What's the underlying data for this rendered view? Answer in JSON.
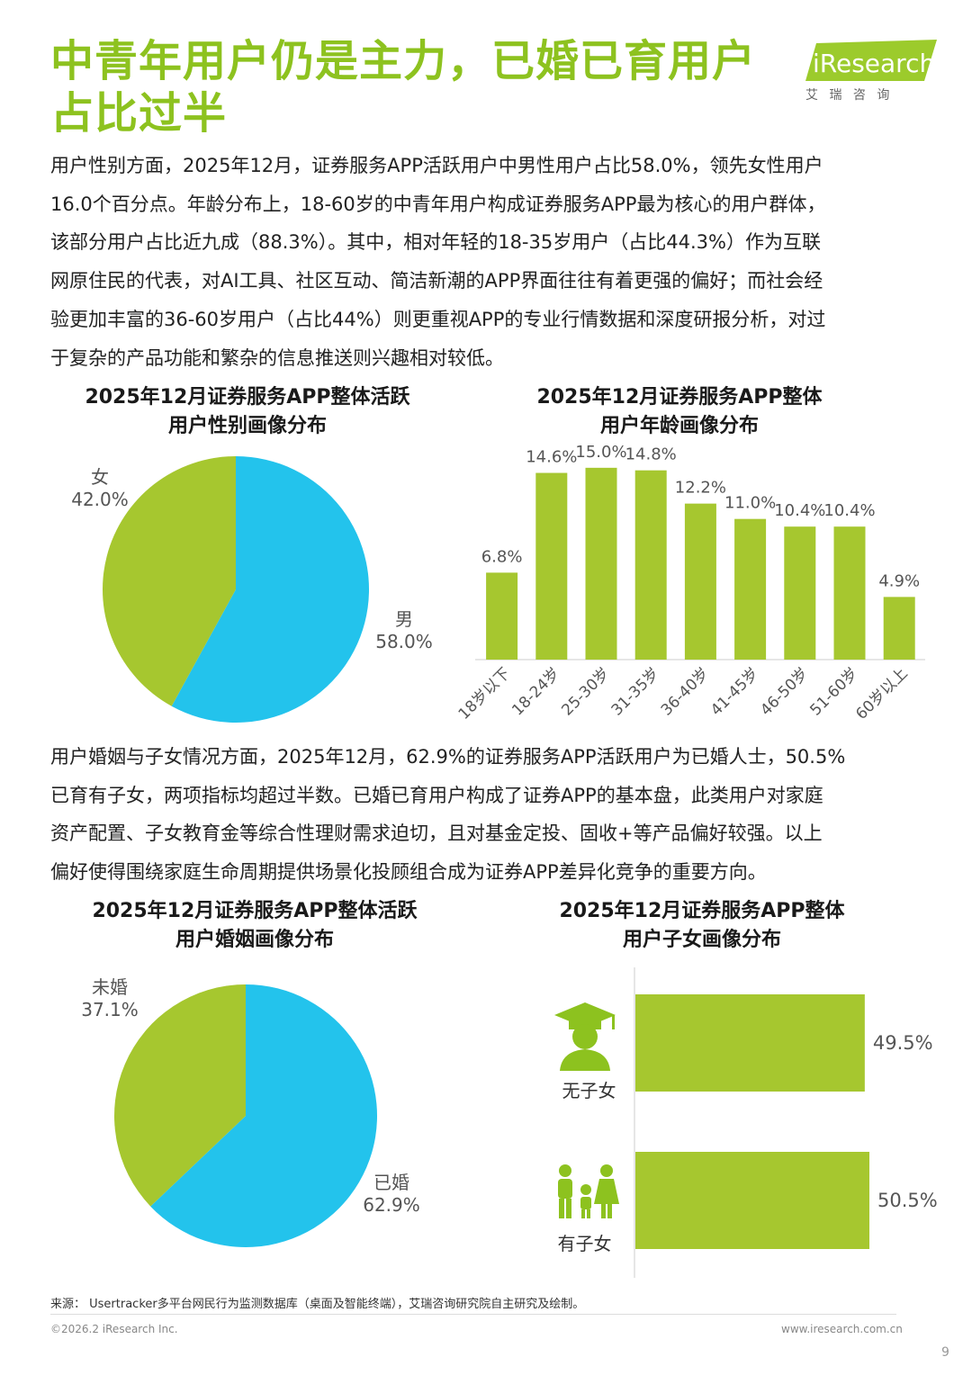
{
  "header": {
    "title_line1": "中青年用户仍是主力，已婚已育用户",
    "title_line2": "占比过半",
    "logo_text": "iResearch",
    "logo_sub": "艾 瑞 咨 询"
  },
  "paragraph1": [
    "用户性别方面，2025年12月，证券服务APP活跃用户中男性用户占比58.0%，领先女性用户",
    "16.0个百分点。年龄分布上，18-60岁的中青年用户构成证券服务APP最为核心的用户群体，",
    "该部分用户占比近九成（88.3%）。其中，相对年轻的18-35岁用户（占比44.3%）作为互联",
    "网原住民的代表，对AI工具、社区互动、简洁新潮的APP界面往往有着更强的偏好；而社会经",
    "验更加丰富的36-60岁用户（占比44%）则更重视APP的专业行情数据和深度研报分析，对过",
    "于复杂的产品功能和繁杂的信息推送则兴趣相对较低。"
  ],
  "paragraph2": [
    "用户婚姻与子女情况方面，2025年12月，62.9%的证券服务APP活跃用户为已婚人士，50.5%",
    "已育有子女，两项指标均超过半数。已婚已育用户构成了证券APP的基本盘，此类用户对家庭",
    "资产配置、子女教育金等综合性理财需求迫切，且对基金定投、固收+等产品偏好较强。以上",
    "偏好使得围绕家庭生命周期提供场景化投顾组合成为证券APP差异化竞争的重要方向。"
  ],
  "charts": {
    "gender": {
      "title": [
        "2025年12月证券服务APP整体活跃",
        "用户性别画像分布"
      ],
      "labels": {
        "female": "女",
        "female_value": "42.0%",
        "male": "男",
        "male_value": "58.0%"
      }
    },
    "age": {
      "title": [
        "2025年12月证券服务APP整体",
        "用户年龄画像分布"
      ]
    },
    "marriage": {
      "title": [
        "2025年12月证券服务APP整体活跃",
        "用户婚姻画像分布"
      ],
      "labels": {
        "single": "未婚",
        "single_value": "37.1%",
        "married": "已婚",
        "married_value": "62.9%"
      }
    },
    "children": {
      "title": [
        "2025年12月证券服务APP整体",
        "用户子女画像分布"
      ],
      "labels": {
        "none": "无子女",
        "none_value": "49.5%",
        "has": "有子女",
        "has_value": "50.5%"
      }
    }
  },
  "chart_data": [
    {
      "type": "pie",
      "categories": [
        "男",
        "女"
      ],
      "values": [
        58.0,
        42.0
      ],
      "colors": [
        "#23c3ec",
        "#a6c72f"
      ]
    },
    {
      "type": "bar",
      "categories": [
        "18岁以下",
        "18-24岁",
        "25-30岁",
        "31-35岁",
        "36-40岁",
        "41-45岁",
        "46-50岁",
        "51-60岁",
        "60岁以上"
      ],
      "values": [
        6.8,
        14.6,
        15.0,
        14.8,
        12.2,
        11.0,
        10.4,
        10.4,
        4.9
      ],
      "value_labels": [
        "6.8%",
        "14.6%",
        "15.0%",
        "14.8%",
        "12.2%",
        "11.0%",
        "10.4%",
        "10.4%",
        "4.9%"
      ],
      "ylim": [
        0,
        16
      ],
      "color": "#a6c72f"
    },
    {
      "type": "pie",
      "categories": [
        "已婚",
        "未婚"
      ],
      "values": [
        62.9,
        37.1
      ],
      "colors": [
        "#23c3ec",
        "#a6c72f"
      ]
    },
    {
      "type": "bar",
      "orientation": "horizontal",
      "categories": [
        "无子女",
        "有子女"
      ],
      "values": [
        49.5,
        50.5
      ],
      "color": "#a6c72f"
    }
  ],
  "footer": {
    "source": "来源：  Usertracker多平台网民行为监测数据库（桌面及智能终端），艾瑞咨询研究院自主研究及绘制。",
    "copyright": "©2026.2 iResearch Inc.",
    "website": "www.iresearch.com.cn",
    "page_number": "9"
  },
  "colors": {
    "accent": "#8dc21f",
    "green": "#a6c72f",
    "blue": "#23c3ec"
  }
}
